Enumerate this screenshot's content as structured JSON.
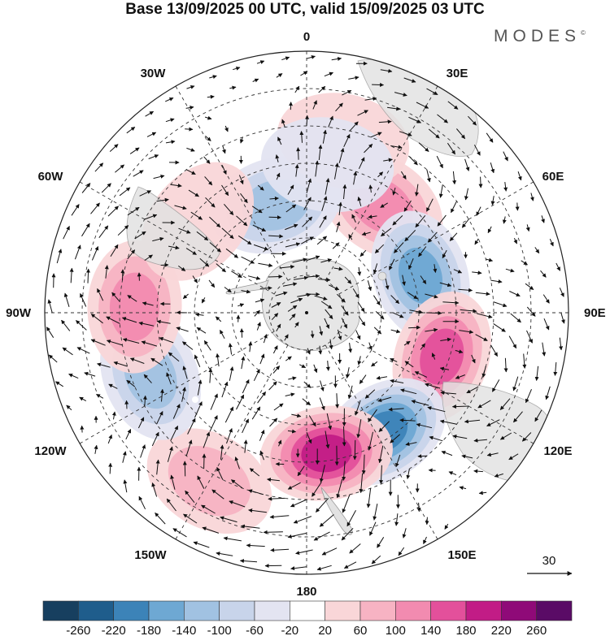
{
  "title": "Base 13/09/2025 00 UTC, valid 15/09/2025 03 UTC",
  "brand": {
    "name": "MODES",
    "mark": "©"
  },
  "map": {
    "projection": "south-polar-stereographic",
    "longitude_labels": {
      "top": "0",
      "top_right": "30E",
      "right_upper": "60E",
      "right": "90E",
      "right_lower": "120E",
      "bottom_right": "150E",
      "bottom": "180",
      "bottom_left": "150W",
      "left_lower": "120W",
      "left": "90W",
      "left_upper": "60W",
      "top_left": "30W"
    },
    "reference_vector": {
      "label": "30"
    }
  },
  "colorbar": {
    "ticks": [
      "-260",
      "-220",
      "-180",
      "-140",
      "-100",
      "-60",
      "-20",
      "20",
      "60",
      "100",
      "140",
      "180",
      "220",
      "260"
    ],
    "colors": [
      "#173f5f",
      "#1f5d8c",
      "#3c83b8",
      "#6ea8d3",
      "#a1c2e2",
      "#c8d4ea",
      "#e3e4f1",
      "#ffffff",
      "#f9d6d8",
      "#f7b3c3",
      "#f28bb0",
      "#e3509b",
      "#c21c86",
      "#8f0a78",
      "#5a0b66"
    ]
  },
  "anomalies": [
    {
      "name": "pos-30E",
      "lon": 35,
      "lat": -55,
      "value": 150
    },
    {
      "name": "neg-60E",
      "lon": 72,
      "lat": -58,
      "value": -190
    },
    {
      "name": "pos-100E",
      "lon": 108,
      "lat": -52,
      "value": 190
    },
    {
      "name": "neg-140E",
      "lon": 147,
      "lat": -52,
      "value": -230
    },
    {
      "name": "pos-170E",
      "lon": 172,
      "lat": -52,
      "value": 230
    },
    {
      "name": "pos-150W",
      "lon": -150,
      "lat": -38,
      "value": 100
    },
    {
      "name": "neg-110W",
      "lon": -112,
      "lat": -45,
      "value": -120
    },
    {
      "name": "pos-90W",
      "lon": -88,
      "lat": -44,
      "value": 130
    },
    {
      "name": "neg-20W",
      "lon": -16,
      "lat": -60,
      "value": -140
    },
    {
      "name": "pos-50W",
      "lon": -50,
      "lat": -52,
      "value": 40
    },
    {
      "name": "pos-10E",
      "lon": 12,
      "lat": -43,
      "value": 50
    },
    {
      "name": "neg-10E",
      "lon": 8,
      "lat": -50,
      "value": -60
    }
  ]
}
